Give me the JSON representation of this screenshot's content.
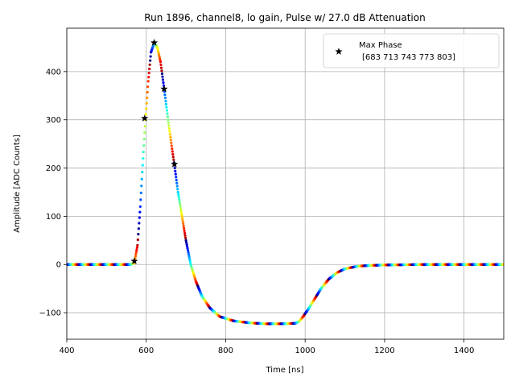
{
  "chart_data": {
    "type": "scatter",
    "title": "Run 1896, channel8, lo gain, Pulse w/ 27.0 dB Attenuation",
    "xlabel": "Time [ns]",
    "ylabel": "Amplitude [ADC Counts]",
    "xlim": [
      400,
      1500
    ],
    "ylim": [
      -155,
      490
    ],
    "x_ticks": [
      400,
      600,
      800,
      1000,
      1200,
      1400
    ],
    "y_ticks": [
      -100,
      0,
      100,
      200,
      300,
      400
    ],
    "x_tick_labels": [
      "400",
      "600",
      "800",
      "1000",
      "1200",
      "1400"
    ],
    "y_tick_labels": [
      "−100",
      "0",
      "100",
      "200",
      "300",
      "400"
    ],
    "grid": true,
    "legend_position": "top-right",
    "colormap": "jet",
    "waveform_points": [
      [
        400,
        0
      ],
      [
        560,
        0
      ],
      [
        570,
        3
      ],
      [
        578,
        40
      ],
      [
        585,
        120
      ],
      [
        592,
        220
      ],
      [
        598,
        300
      ],
      [
        605,
        380
      ],
      [
        612,
        440
      ],
      [
        620,
        460
      ],
      [
        628,
        450
      ],
      [
        636,
        420
      ],
      [
        645,
        365
      ],
      [
        655,
        300
      ],
      [
        665,
        240
      ],
      [
        672,
        200
      ],
      [
        680,
        150
      ],
      [
        690,
        100
      ],
      [
        700,
        50
      ],
      [
        712,
        0
      ],
      [
        725,
        -35
      ],
      [
        740,
        -65
      ],
      [
        760,
        -90
      ],
      [
        785,
        -108
      ],
      [
        820,
        -117
      ],
      [
        860,
        -121
      ],
      [
        900,
        -123
      ],
      [
        940,
        -123
      ],
      [
        975,
        -122
      ],
      [
        985,
        -118
      ],
      [
        995,
        -108
      ],
      [
        1010,
        -90
      ],
      [
        1025,
        -70
      ],
      [
        1040,
        -50
      ],
      [
        1060,
        -30
      ],
      [
        1080,
        -17
      ],
      [
        1100,
        -9
      ],
      [
        1130,
        -4
      ],
      [
        1160,
        -2
      ],
      [
        1200,
        -1
      ],
      [
        1300,
        0
      ],
      [
        1500,
        0
      ]
    ],
    "max_phase_points": [
      {
        "x": 570,
        "y": 7
      },
      {
        "x": 596,
        "y": 303
      },
      {
        "x": 620,
        "y": 460
      },
      {
        "x": 645,
        "y": 364
      },
      {
        "x": 671,
        "y": 208
      }
    ],
    "legend": {
      "label_line1": "Max Phase",
      "label_line2": "[683 713 743 773 803]"
    },
    "marker_color": "#000000"
  }
}
